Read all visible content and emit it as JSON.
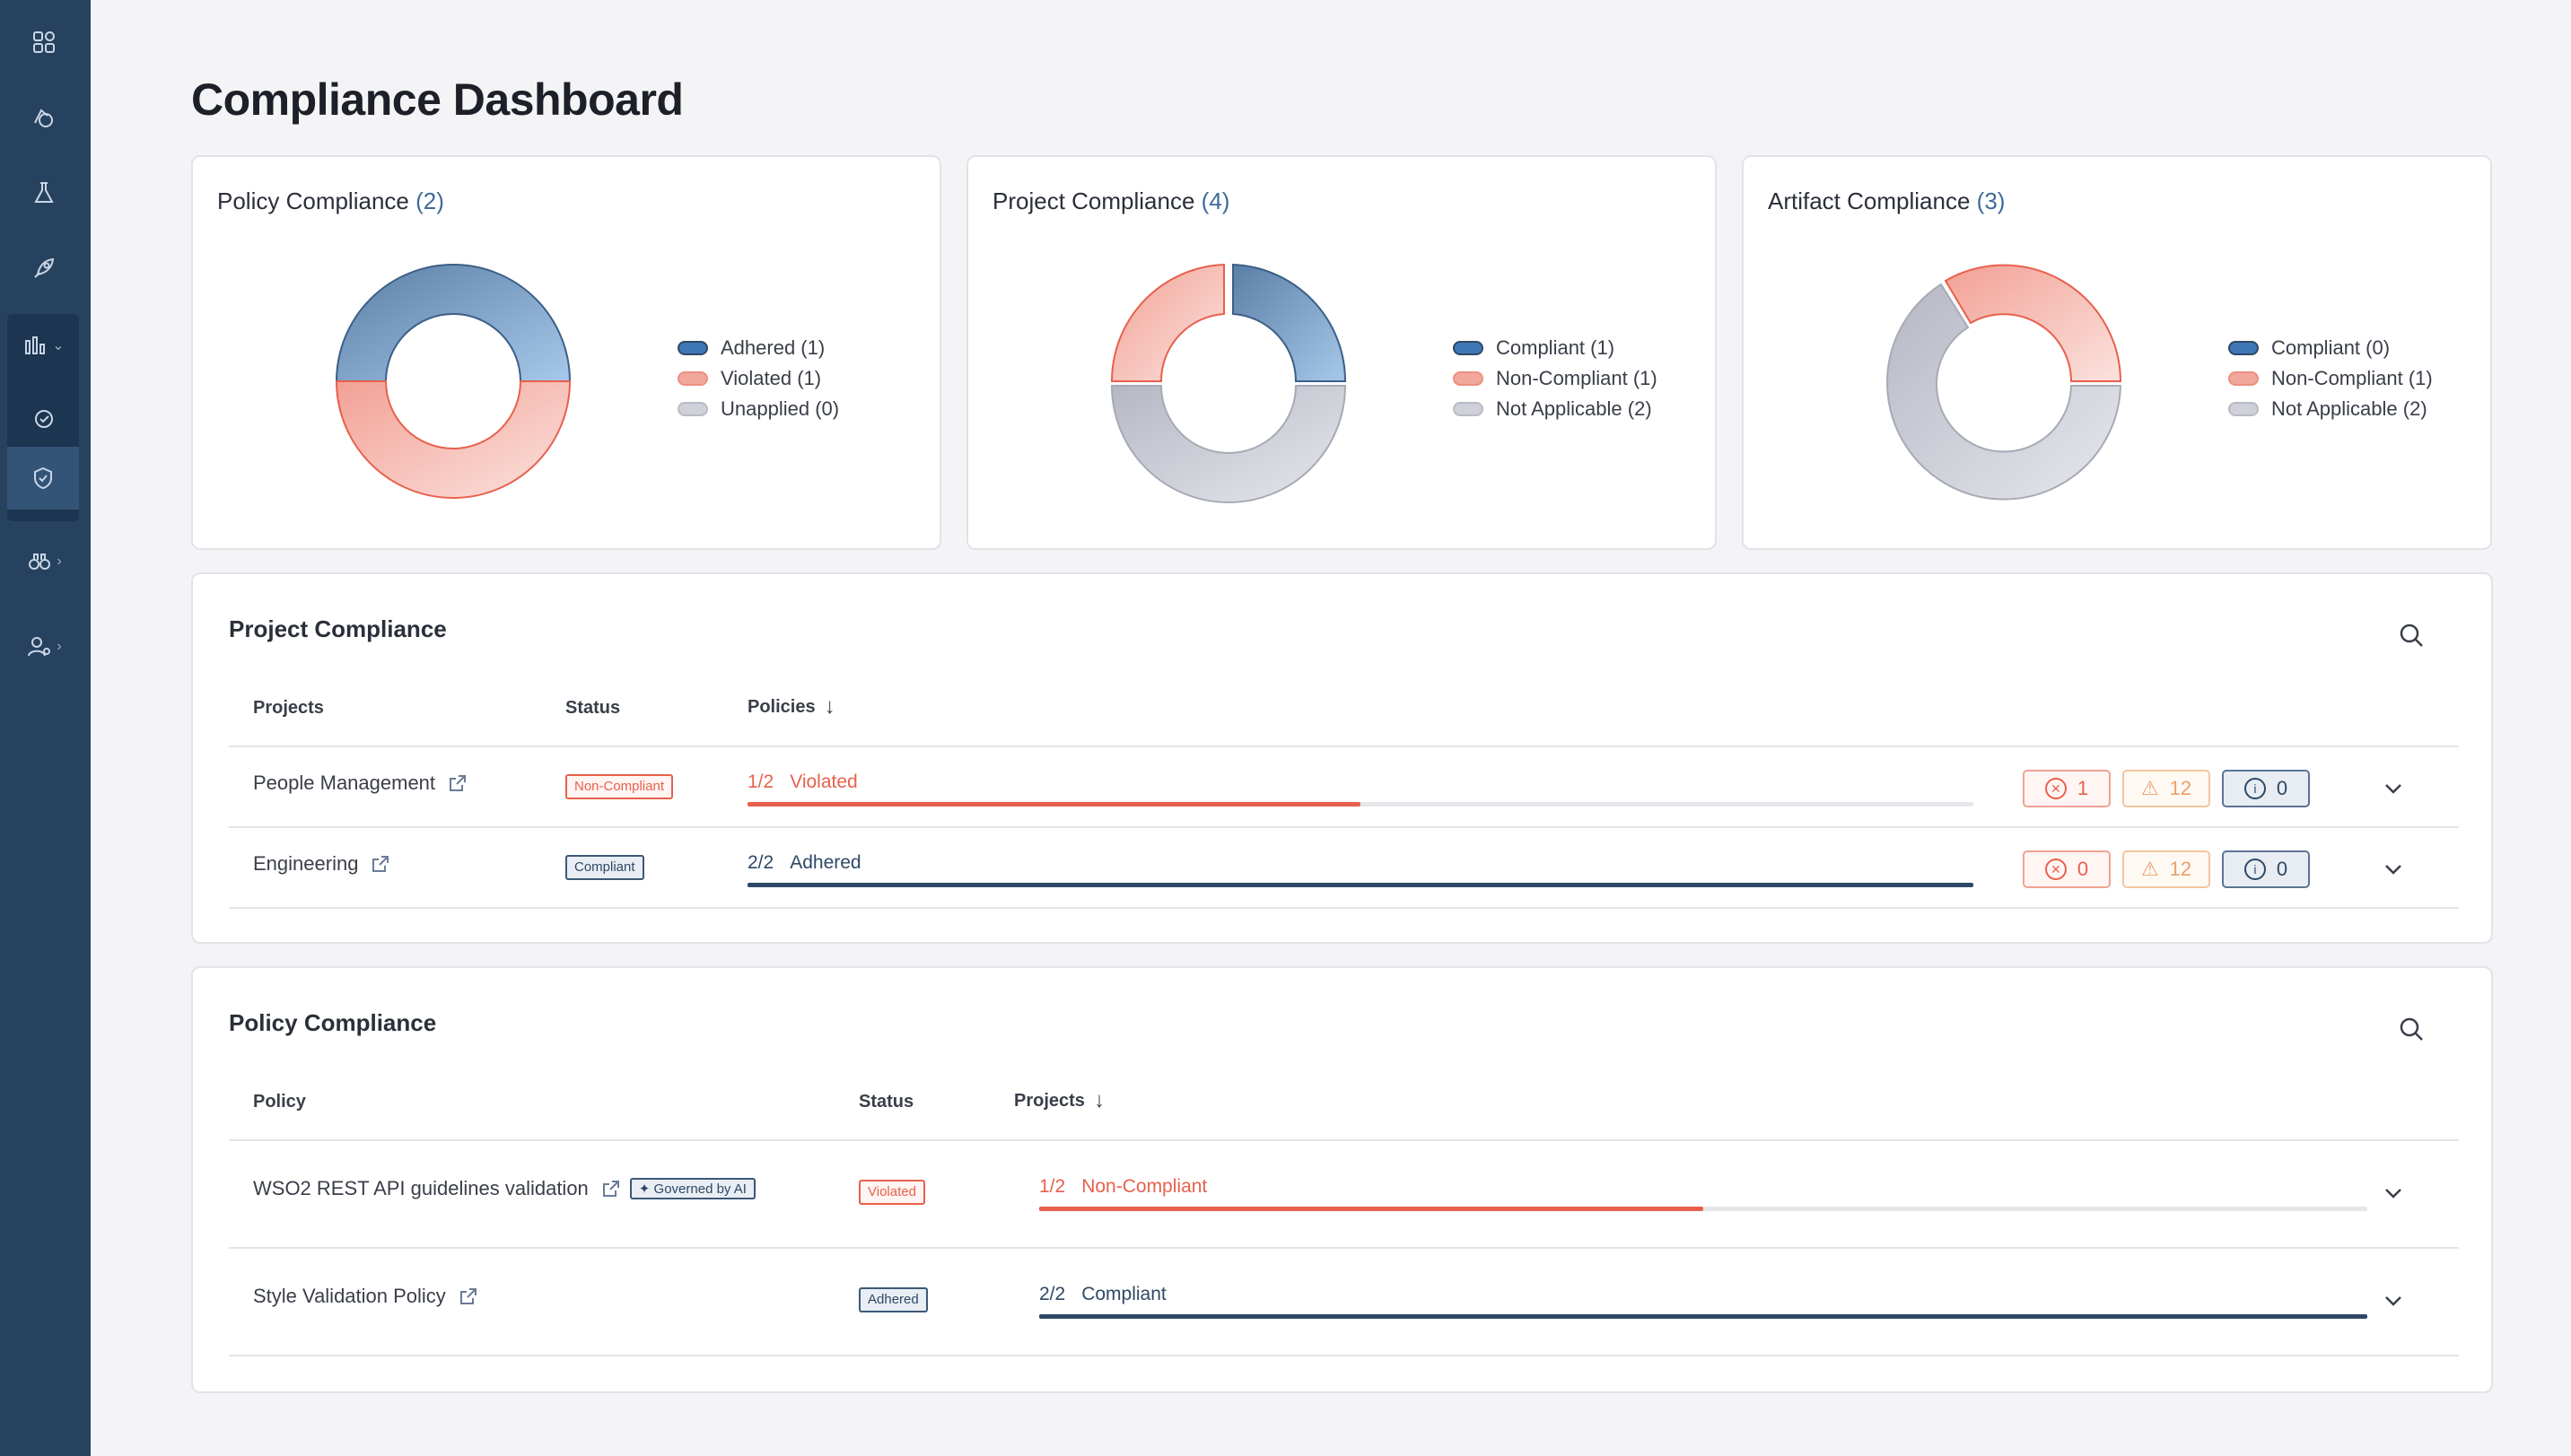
{
  "page": {
    "title": "Compliance Dashboard"
  },
  "sidebar": {
    "items": [
      {
        "icon": "grid-icon"
      },
      {
        "icon": "design-icon"
      },
      {
        "icon": "flask-icon"
      },
      {
        "icon": "rocket-icon"
      },
      {
        "icon": "bar-chart-icon"
      },
      {
        "icon": "governance-icon"
      },
      {
        "icon": "shield-icon"
      },
      {
        "icon": "binoculars-icon"
      },
      {
        "icon": "user-settings-icon"
      }
    ]
  },
  "summary": [
    {
      "title": "Policy Compliance",
      "count": "(2)",
      "legend": [
        {
          "label": "Adhered (1)",
          "color": "#3f77b6"
        },
        {
          "label": "Violated (1)",
          "color": "#f2a79c"
        },
        {
          "label": "Unapplied (0)",
          "color": "#cfd0d8"
        }
      ],
      "segments": [
        {
          "value": 1,
          "color": "blue"
        },
        {
          "value": 1,
          "color": "red"
        }
      ]
    },
    {
      "title": "Project Compliance",
      "count": "(4)",
      "legend": [
        {
          "label": "Compliant (1)",
          "color": "#3f77b6"
        },
        {
          "label": "Non-Compliant (1)",
          "color": "#f2a79c"
        },
        {
          "label": "Not Applicable (2)",
          "color": "#cfd0d8"
        }
      ],
      "segments": [
        {
          "value": 1,
          "color": "blue"
        },
        {
          "value": 2,
          "color": "grey"
        },
        {
          "value": 1,
          "color": "red"
        }
      ]
    },
    {
      "title": "Artifact Compliance",
      "count": "(3)",
      "legend": [
        {
          "label": "Compliant (0)",
          "color": "#3f77b6"
        },
        {
          "label": "Non-Compliant (1)",
          "color": "#f2a79c"
        },
        {
          "label": "Not Applicable (2)",
          "color": "#cfd0d8"
        }
      ],
      "segments": [
        {
          "value": 1,
          "color": "red"
        },
        {
          "value": 2,
          "color": "grey"
        }
      ]
    }
  ],
  "project_table": {
    "title": "Project Compliance",
    "headers": {
      "name": "Projects",
      "status": "Status",
      "policies": "Policies"
    },
    "rows": [
      {
        "name": "People Management",
        "status": "Non-Compliant",
        "ratio": "1/2",
        "state": "Violated",
        "progress": 0.5,
        "errors": "1",
        "warnings": "12",
        "info": "0"
      },
      {
        "name": "Engineering",
        "status": "Compliant",
        "ratio": "2/2",
        "state": "Adhered",
        "progress": 1.0,
        "errors": "0",
        "warnings": "12",
        "info": "0"
      }
    ]
  },
  "policy_table": {
    "title": "Policy Compliance",
    "headers": {
      "name": "Policy",
      "status": "Status",
      "projects": "Projects"
    },
    "rows": [
      {
        "name": "WSO2 REST API guidelines validation",
        "ai_badge": "Governed by AI",
        "status": "Violated",
        "ratio": "1/2",
        "state": "Non-Compliant",
        "progress": 0.5
      },
      {
        "name": "Style Validation Policy",
        "status": "Adhered",
        "ratio": "2/2",
        "state": "Compliant",
        "progress": 1.0
      }
    ]
  },
  "colors": {
    "accent": "#27425f",
    "danger": "#e8604c",
    "dark": "#2e4866",
    "warning": "#e9a06a"
  }
}
